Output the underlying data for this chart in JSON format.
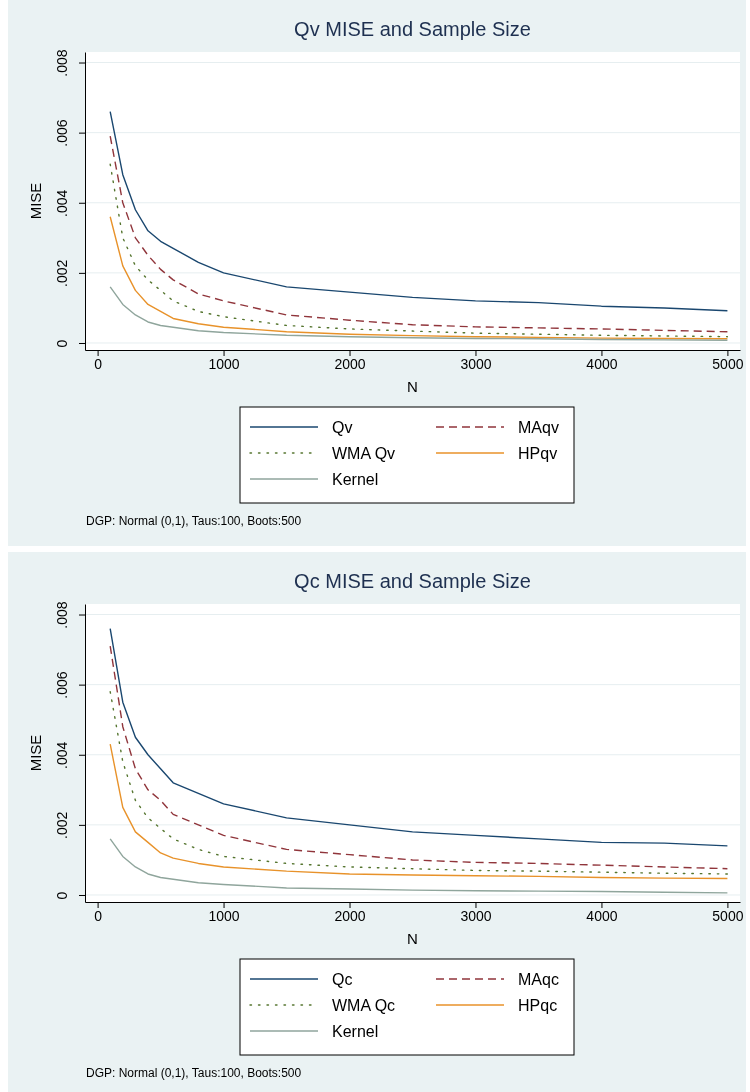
{
  "chart_data": [
    {
      "type": "line",
      "title": "Qv MISE and Sample Size",
      "xlabel": "N",
      "ylabel": "MISE",
      "x": [
        100,
        200,
        300,
        400,
        500,
        600,
        800,
        1000,
        1500,
        2000,
        2500,
        3000,
        3500,
        4000,
        4500,
        5000
      ],
      "series": [
        {
          "name": "Qv",
          "color": "#1a476f",
          "line_style": "solid",
          "values": [
            0.0066,
            0.0048,
            0.0038,
            0.0032,
            0.0029,
            0.0027,
            0.0023,
            0.002,
            0.0016,
            0.00145,
            0.0013,
            0.0012,
            0.00115,
            0.00105,
            0.001,
            0.00092
          ]
        },
        {
          "name": "MAqv",
          "color": "#90353b",
          "line_style": "dashed",
          "values": [
            0.0059,
            0.004,
            0.003,
            0.0025,
            0.0021,
            0.0018,
            0.0014,
            0.0012,
            0.0008,
            0.00065,
            0.00052,
            0.00046,
            0.00043,
            0.0004,
            0.00036,
            0.00032
          ]
        },
        {
          "name": "WMA Qv",
          "color": "#55752f",
          "line_style": "dotted",
          "values": [
            0.0051,
            0.003,
            0.0022,
            0.0018,
            0.0015,
            0.0012,
            0.0009,
            0.00075,
            0.0005,
            0.0004,
            0.00034,
            0.00028,
            0.00025,
            0.00022,
            0.0002,
            0.00018
          ]
        },
        {
          "name": "HPqv",
          "color": "#e8922a",
          "line_style": "solid",
          "values": [
            0.0036,
            0.0022,
            0.0015,
            0.0011,
            0.0009,
            0.0007,
            0.00055,
            0.00045,
            0.00032,
            0.00025,
            0.00021,
            0.00018,
            0.00016,
            0.00014,
            0.00013,
            0.00012
          ]
        },
        {
          "name": "Kernel",
          "color": "#8fa59c",
          "line_style": "solid",
          "values": [
            0.0016,
            0.0011,
            0.0008,
            0.0006,
            0.0005,
            0.00045,
            0.00035,
            0.0003,
            0.00022,
            0.00018,
            0.00015,
            0.00013,
            0.00012,
            0.0001,
            9e-05,
            8e-05
          ]
        }
      ],
      "xlim": [
        -100,
        5100
      ],
      "xticks": [
        0,
        1000,
        2000,
        3000,
        4000,
        5000
      ],
      "ylim": [
        -0.0002,
        0.0083
      ],
      "yticks": [
        0,
        {
          "value": 0.002,
          "label": ".002"
        },
        {
          "value": 0.004,
          "label": ".004"
        },
        {
          "value": 0.006,
          "label": ".006"
        },
        {
          "value": 0.008,
          "label": ".008"
        }
      ],
      "grid": "y",
      "legend": "bottom",
      "annotations": [
        "DGP: Normal (0,1), Taus:100, Boots:500"
      ]
    },
    {
      "type": "line",
      "title": "Qc MISE and Sample Size",
      "xlabel": "N",
      "ylabel": "MISE",
      "x": [
        100,
        200,
        300,
        400,
        500,
        600,
        800,
        1000,
        1500,
        2000,
        2500,
        3000,
        3500,
        4000,
        4500,
        5000
      ],
      "series": [
        {
          "name": "Qc",
          "color": "#1a476f",
          "line_style": "solid",
          "values": [
            0.0076,
            0.0055,
            0.0045,
            0.004,
            0.0036,
            0.0032,
            0.0029,
            0.0026,
            0.0022,
            0.002,
            0.0018,
            0.0017,
            0.0016,
            0.0015,
            0.00148,
            0.0014
          ]
        },
        {
          "name": "MAqc",
          "color": "#90353b",
          "line_style": "dashed",
          "values": [
            0.0071,
            0.0048,
            0.0036,
            0.003,
            0.0027,
            0.0023,
            0.002,
            0.0017,
            0.0013,
            0.00115,
            0.001,
            0.00093,
            0.0009,
            0.00085,
            0.0008,
            0.00075
          ]
        },
        {
          "name": "WMA Qc",
          "color": "#55752f",
          "line_style": "dotted",
          "values": [
            0.0058,
            0.0038,
            0.0027,
            0.0022,
            0.0019,
            0.0016,
            0.0013,
            0.0011,
            0.0009,
            0.0008,
            0.00075,
            0.0007,
            0.00068,
            0.00065,
            0.00062,
            0.0006
          ]
        },
        {
          "name": "HPqc",
          "color": "#e8922a",
          "line_style": "solid",
          "values": [
            0.0043,
            0.0025,
            0.0018,
            0.0015,
            0.0012,
            0.00105,
            0.0009,
            0.0008,
            0.00068,
            0.0006,
            0.00057,
            0.00055,
            0.00053,
            0.0005,
            0.00048,
            0.00047
          ]
        },
        {
          "name": "Kernel",
          "color": "#8fa59c",
          "line_style": "solid",
          "values": [
            0.0016,
            0.0011,
            0.0008,
            0.0006,
            0.0005,
            0.00045,
            0.00035,
            0.0003,
            0.0002,
            0.00017,
            0.00014,
            0.00012,
            0.00011,
            0.0001,
            8e-05,
            6e-05
          ]
        }
      ],
      "xlim": [
        -100,
        5100
      ],
      "xticks": [
        0,
        1000,
        2000,
        3000,
        4000,
        5000
      ],
      "ylim": [
        -0.0002,
        0.0083
      ],
      "yticks": [
        0,
        {
          "value": 0.002,
          "label": ".002"
        },
        {
          "value": 0.004,
          "label": ".004"
        },
        {
          "value": 0.006,
          "label": ".006"
        },
        {
          "value": 0.008,
          "label": ".008"
        }
      ],
      "grid": "y",
      "legend": "bottom",
      "annotations": [
        "DGP: Normal (0,1), Taus:100, Boots:500"
      ]
    }
  ]
}
